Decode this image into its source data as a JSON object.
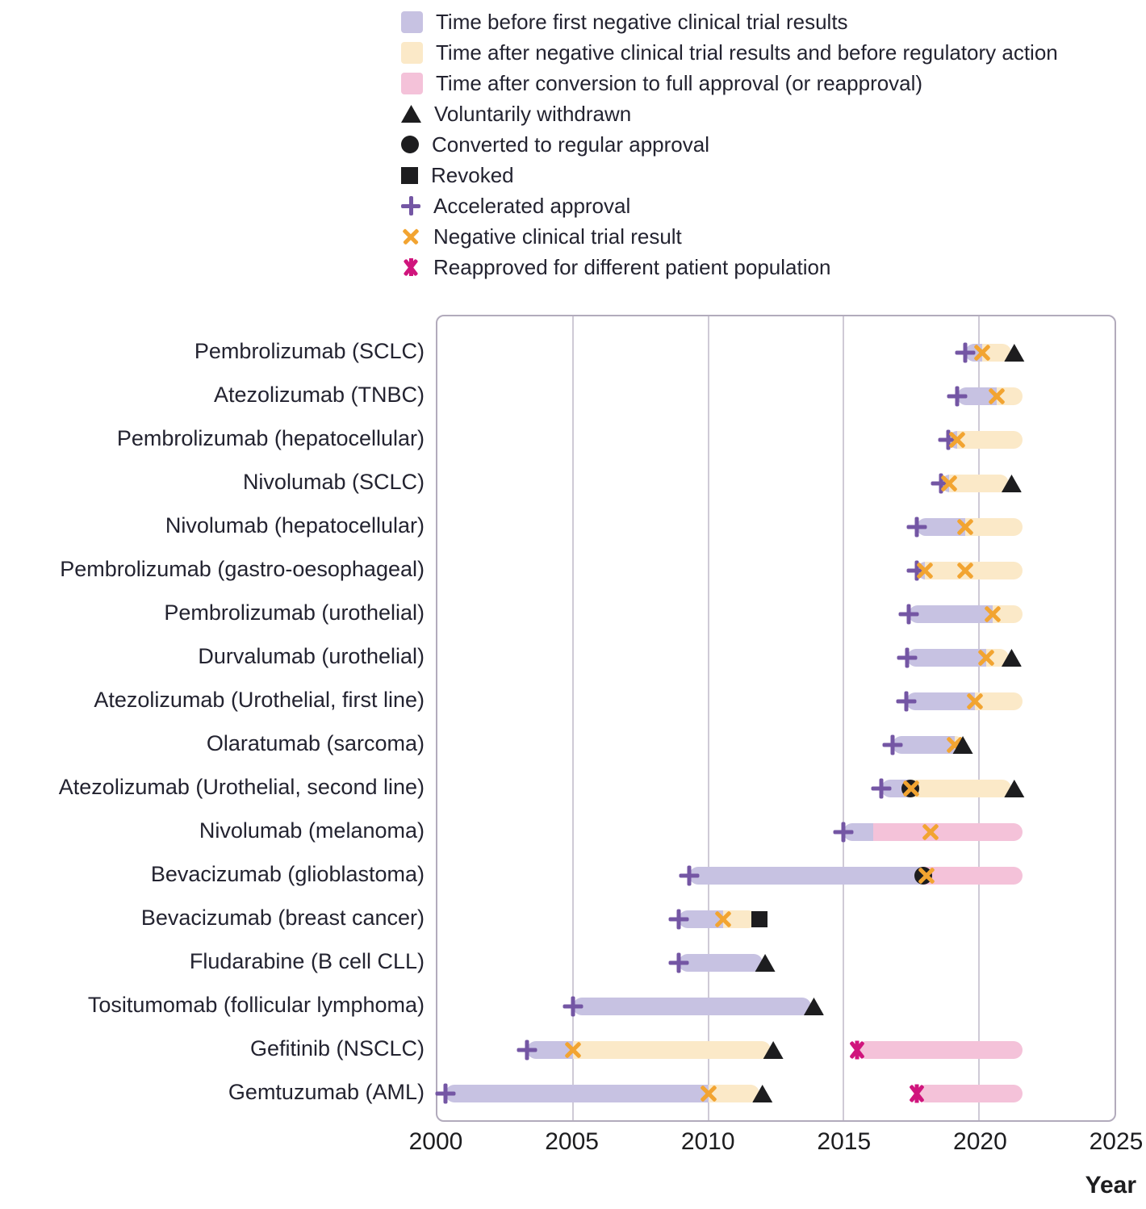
{
  "palette": {
    "before": "#c7c2e2",
    "after": "#fbe9c8",
    "full": "#f4c2d9",
    "plus": "#7456a4",
    "negx": "#f2a431",
    "magenta": "#d0157d",
    "black": "#1d1d1f",
    "grid": "#cfcad6",
    "border": "#b2abbc",
    "text": "#232330"
  },
  "chart_data": {
    "type": "timeline",
    "unit": "year",
    "axis": {
      "min": 2000,
      "max": 2025,
      "ticks": [
        2000,
        2005,
        2010,
        2015,
        2020,
        2025
      ],
      "label": "Year"
    },
    "legend": {
      "items": [
        {
          "marker": "swatch",
          "color": "before",
          "icon": "before-negative-trial-swatch-icon",
          "label": "Time before first negative clinical trial results"
        },
        {
          "marker": "swatch",
          "color": "after",
          "icon": "after-negative-trial-swatch-icon",
          "label": "Time after negative clinical trial results and before regulatory action"
        },
        {
          "marker": "swatch",
          "color": "full",
          "icon": "full-approval-swatch-icon",
          "label": "Time after conversion to full approval (or reapproval)"
        },
        {
          "marker": "tri",
          "color": "black",
          "icon": "withdrawn-triangle-icon",
          "label": "Voluntarily withdrawn"
        },
        {
          "marker": "circle",
          "color": "black",
          "icon": "converted-circle-icon",
          "label": "Converted to regular approval"
        },
        {
          "marker": "square",
          "color": "black",
          "icon": "revoked-square-icon",
          "label": "Revoked"
        },
        {
          "marker": "plus",
          "color": "plus",
          "icon": "accelerated-approval-plus-icon",
          "label": "Accelerated approval"
        },
        {
          "marker": "x",
          "color": "negx",
          "icon": "negative-trial-x-icon",
          "label": "Negative clinical trial result"
        },
        {
          "marker": "xstar",
          "color": "magenta",
          "icon": "reapproved-asterisk-icon",
          "label": "Reapproved for different patient population"
        }
      ]
    },
    "rows": [
      {
        "label": "Pembrolizumab (SCLC)",
        "segments": [
          {
            "start": 2019.5,
            "end": 2020.1,
            "color": "before"
          },
          {
            "start": 2020.1,
            "end": 2021.2,
            "color": "after"
          }
        ],
        "markers": [
          {
            "type": "accelerated-approval",
            "year": 2019.5
          },
          {
            "type": "negative-trial",
            "year": 2020.1
          },
          {
            "type": "withdrawn",
            "year": 2021.3
          }
        ]
      },
      {
        "label": "Atezolizumab (TNBC)",
        "segments": [
          {
            "start": 2019.2,
            "end": 2020.65,
            "color": "before"
          },
          {
            "start": 2020.65,
            "end": 2021.6,
            "color": "after"
          }
        ],
        "markers": [
          {
            "type": "accelerated-approval",
            "year": 2019.2
          },
          {
            "type": "negative-trial",
            "year": 2020.65
          }
        ]
      },
      {
        "label": "Pembrolizumab (hepatocellular)",
        "segments": [
          {
            "start": 2018.85,
            "end": 2019.2,
            "color": "before"
          },
          {
            "start": 2019.2,
            "end": 2021.6,
            "color": "after"
          }
        ],
        "markers": [
          {
            "type": "accelerated-approval",
            "year": 2018.85
          },
          {
            "type": "negative-trial",
            "year": 2019.2
          }
        ]
      },
      {
        "label": "Nivolumab (SCLC)",
        "segments": [
          {
            "start": 2018.6,
            "end": 2018.9,
            "color": "before"
          },
          {
            "start": 2018.9,
            "end": 2021.1,
            "color": "after"
          }
        ],
        "markers": [
          {
            "type": "accelerated-approval",
            "year": 2018.6
          },
          {
            "type": "negative-trial",
            "year": 2018.9
          },
          {
            "type": "withdrawn",
            "year": 2021.2
          }
        ]
      },
      {
        "label": "Nivolumab (hepatocellular)",
        "segments": [
          {
            "start": 2017.7,
            "end": 2019.5,
            "color": "before"
          },
          {
            "start": 2019.5,
            "end": 2021.6,
            "color": "after"
          }
        ],
        "markers": [
          {
            "type": "accelerated-approval",
            "year": 2017.7
          },
          {
            "type": "negative-trial",
            "year": 2019.5
          }
        ]
      },
      {
        "label": "Pembrolizumab (gastro-oesophageal)",
        "segments": [
          {
            "start": 2017.7,
            "end": 2018.0,
            "color": "before"
          },
          {
            "start": 2018.0,
            "end": 2021.6,
            "color": "after"
          }
        ],
        "markers": [
          {
            "type": "accelerated-approval",
            "year": 2017.7
          },
          {
            "type": "negative-trial",
            "year": 2018.0
          },
          {
            "type": "negative-trial",
            "year": 2019.5
          }
        ]
      },
      {
        "label": "Pembrolizumab (urothelial)",
        "segments": [
          {
            "start": 2017.4,
            "end": 2020.5,
            "color": "before"
          },
          {
            "start": 2020.5,
            "end": 2021.6,
            "color": "after"
          }
        ],
        "markers": [
          {
            "type": "accelerated-approval",
            "year": 2017.4
          },
          {
            "type": "negative-trial",
            "year": 2020.5
          }
        ]
      },
      {
        "label": "Durvalumab (urothelial)",
        "segments": [
          {
            "start": 2017.35,
            "end": 2020.25,
            "color": "before"
          },
          {
            "start": 2020.25,
            "end": 2021.1,
            "color": "after"
          }
        ],
        "markers": [
          {
            "type": "accelerated-approval",
            "year": 2017.35
          },
          {
            "type": "negative-trial",
            "year": 2020.25
          },
          {
            "type": "withdrawn",
            "year": 2021.2
          }
        ]
      },
      {
        "label": "Atezolizumab (Urothelial, first line)",
        "segments": [
          {
            "start": 2017.3,
            "end": 2019.85,
            "color": "before"
          },
          {
            "start": 2019.85,
            "end": 2021.6,
            "color": "after"
          }
        ],
        "markers": [
          {
            "type": "accelerated-approval",
            "year": 2017.3
          },
          {
            "type": "negative-trial",
            "year": 2019.85
          }
        ]
      },
      {
        "label": "Olaratumab (sarcoma)",
        "segments": [
          {
            "start": 2016.8,
            "end": 2019.1,
            "color": "before"
          },
          {
            "start": 2019.1,
            "end": 2019.45,
            "color": "after"
          }
        ],
        "markers": [
          {
            "type": "accelerated-approval",
            "year": 2016.8
          },
          {
            "type": "negative-trial",
            "year": 2019.1
          },
          {
            "type": "withdrawn",
            "year": 2019.4
          }
        ]
      },
      {
        "label": "Atezolizumab (Urothelial, second line)",
        "segments": [
          {
            "start": 2016.4,
            "end": 2017.45,
            "color": "before"
          },
          {
            "start": 2017.45,
            "end": 2021.2,
            "color": "after"
          }
        ],
        "markers": [
          {
            "type": "accelerated-approval",
            "year": 2016.4
          },
          {
            "type": "converted",
            "year": 2017.45
          },
          {
            "type": "negative-trial",
            "year": 2017.5
          },
          {
            "type": "withdrawn",
            "year": 2021.3
          }
        ]
      },
      {
        "label": "Nivolumab (melanoma)",
        "segments": [
          {
            "start": 2015.0,
            "end": 2016.1,
            "color": "before"
          },
          {
            "start": 2016.1,
            "end": 2021.6,
            "color": "full"
          }
        ],
        "markers": [
          {
            "type": "accelerated-approval",
            "year": 2015.0
          },
          {
            "type": "negative-trial",
            "year": 2018.2
          }
        ]
      },
      {
        "label": "Bevacizumab (glioblastoma)",
        "segments": [
          {
            "start": 2009.3,
            "end": 2017.95,
            "color": "before"
          },
          {
            "start": 2017.95,
            "end": 2021.6,
            "color": "full"
          }
        ],
        "markers": [
          {
            "type": "accelerated-approval",
            "year": 2009.3
          },
          {
            "type": "converted",
            "year": 2017.95
          },
          {
            "type": "negative-trial",
            "year": 2018.05
          }
        ]
      },
      {
        "label": "Bevacizumab (breast cancer)",
        "segments": [
          {
            "start": 2008.9,
            "end": 2010.55,
            "color": "before"
          },
          {
            "start": 2010.55,
            "end": 2011.8,
            "color": "after"
          }
        ],
        "markers": [
          {
            "type": "accelerated-approval",
            "year": 2008.9
          },
          {
            "type": "negative-trial",
            "year": 2010.55
          },
          {
            "type": "revoked",
            "year": 2011.9
          }
        ]
      },
      {
        "label": "Fludarabine (B cell CLL)",
        "segments": [
          {
            "start": 2008.9,
            "end": 2012.0,
            "color": "before"
          }
        ],
        "markers": [
          {
            "type": "accelerated-approval",
            "year": 2008.9
          },
          {
            "type": "withdrawn",
            "year": 2012.1
          }
        ]
      },
      {
        "label": "Tositumomab (follicular lymphoma)",
        "segments": [
          {
            "start": 2005.0,
            "end": 2013.8,
            "color": "before"
          }
        ],
        "markers": [
          {
            "type": "accelerated-approval",
            "year": 2005.0
          },
          {
            "type": "withdrawn",
            "year": 2013.9
          }
        ]
      },
      {
        "label": "Gefitinib (NSCLC)",
        "segments": [
          {
            "start": 2003.3,
            "end": 2005.0,
            "color": "before"
          },
          {
            "start": 2005.0,
            "end": 2012.3,
            "color": "after"
          },
          {
            "start": 2015.5,
            "end": 2021.6,
            "color": "full"
          }
        ],
        "markers": [
          {
            "type": "accelerated-approval",
            "year": 2003.3
          },
          {
            "type": "negative-trial",
            "year": 2005.0
          },
          {
            "type": "withdrawn",
            "year": 2012.4
          },
          {
            "type": "reapproved",
            "year": 2015.5
          }
        ]
      },
      {
        "label": "Gemtuzumab (AML)",
        "segments": [
          {
            "start": 2000.3,
            "end": 2010.0,
            "color": "before"
          },
          {
            "start": 2010.0,
            "end": 2011.9,
            "color": "after"
          },
          {
            "start": 2017.7,
            "end": 2021.6,
            "color": "full"
          }
        ],
        "markers": [
          {
            "type": "accelerated-approval",
            "year": 2000.3
          },
          {
            "type": "negative-trial",
            "year": 2010.0
          },
          {
            "type": "withdrawn",
            "year": 2012.0
          },
          {
            "type": "reapproved",
            "year": 2017.7
          }
        ]
      }
    ]
  }
}
